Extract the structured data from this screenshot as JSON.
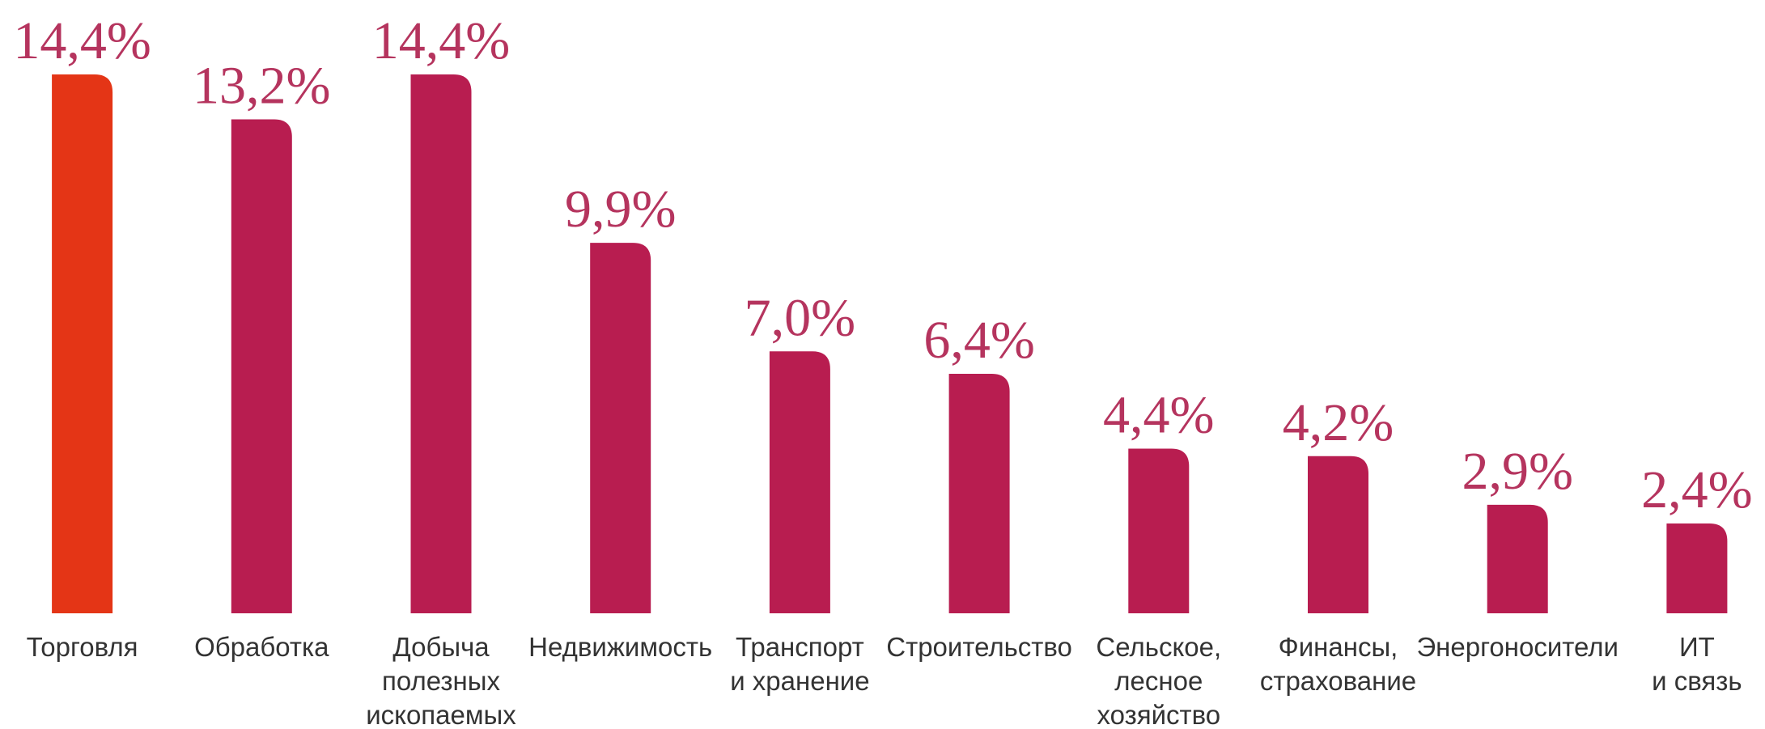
{
  "chart_data": {
    "type": "bar",
    "categories": [
      [
        "Торговля"
      ],
      [
        "Обработка"
      ],
      [
        "Добыча",
        "полезных",
        "ископаемых"
      ],
      [
        "Недвижимость"
      ],
      [
        "Транспорт",
        "и хранение"
      ],
      [
        "Строительство"
      ],
      [
        "Сельское,",
        "лесное",
        "хозяйство"
      ],
      [
        "Финансы,",
        "страхование"
      ],
      [
        "Энергоносители"
      ],
      [
        "ИТ",
        "и связь"
      ]
    ],
    "values": [
      14.4,
      13.2,
      14.4,
      9.9,
      7.0,
      6.4,
      4.4,
      4.2,
      2.9,
      2.4
    ],
    "value_labels": [
      "14,4%",
      "13,2%",
      "14,4%",
      "9,9%",
      "7,0%",
      "6,4%",
      "4,4%",
      "4,2%",
      "2,9%",
      "2,4%"
    ],
    "colors": [
      "#e43516",
      "#b81d50",
      "#b81d50",
      "#b81d50",
      "#b81d50",
      "#b81d50",
      "#b81d50",
      "#b81d50",
      "#b81d50",
      "#b81d50"
    ]
  }
}
